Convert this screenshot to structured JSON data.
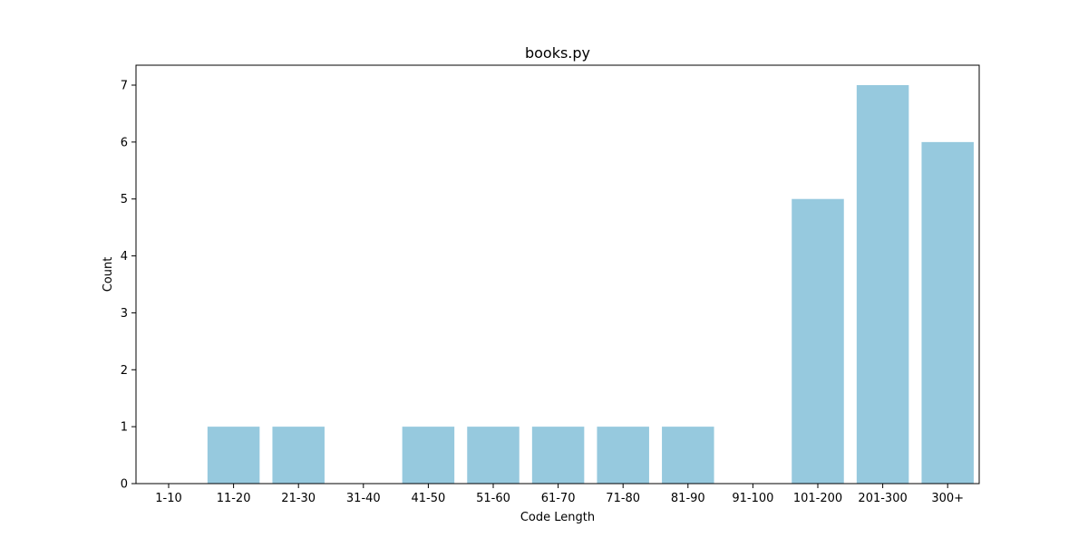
{
  "chart_data": {
    "type": "bar",
    "title": "books.py",
    "xlabel": "Code Length",
    "ylabel": "Count",
    "categories": [
      "1-10",
      "11-20",
      "21-30",
      "31-40",
      "41-50",
      "51-60",
      "61-70",
      "71-80",
      "81-90",
      "91-100",
      "101-200",
      "201-300",
      "300+"
    ],
    "values": [
      0,
      1,
      1,
      0,
      1,
      1,
      1,
      1,
      1,
      0,
      5,
      7,
      6
    ],
    "ylim": [
      0,
      7.35
    ],
    "yticks": [
      0,
      1,
      2,
      3,
      4,
      5,
      6,
      7
    ],
    "grid": false,
    "legend": "none",
    "bar_color": "#96c9de"
  }
}
